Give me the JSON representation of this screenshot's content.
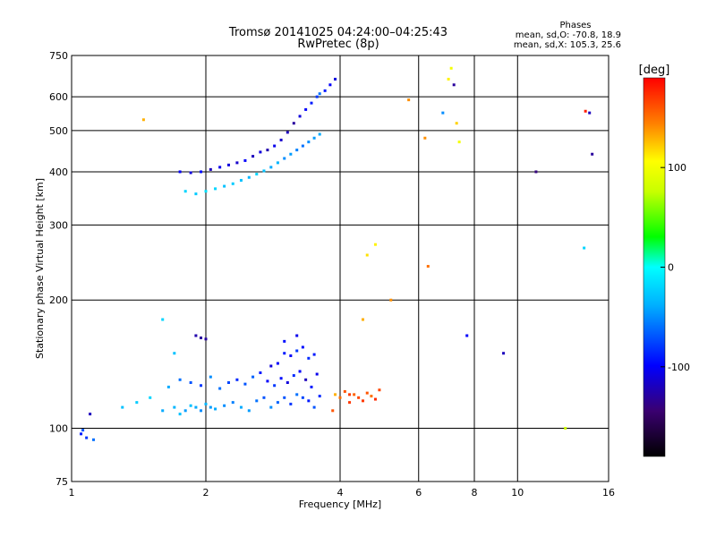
{
  "chart_data": {
    "type": "scatter",
    "title": "Tromsø 20141025 04:24:00–04:25:43",
    "subtitle": "RwPretec (8p)",
    "info_title": "Phases",
    "info_line1": "mean, sd,O: -70.8, 18.9",
    "info_line2": "mean, sd,X: 105.3, 25.6",
    "xlabel": "Frequency [MHz]",
    "ylabel": "Stationary phase Virtual Height [km]",
    "x_scale": "log",
    "y_scale": "log",
    "xlim": [
      1,
      16
    ],
    "ylim": [
      75,
      750
    ],
    "x_ticks": [
      1,
      2,
      4,
      6,
      8,
      10,
      16
    ],
    "x_grid": [
      2,
      4,
      6,
      8,
      10
    ],
    "y_ticks": [
      75,
      100,
      200,
      300,
      400,
      500,
      600,
      750
    ],
    "y_grid": [
      100,
      200,
      300,
      400,
      500,
      600
    ],
    "grid": true,
    "colorbar": {
      "label": "[deg]",
      "ticks": [
        100,
        0,
        -100
      ],
      "range": [
        -190,
        190
      ]
    },
    "series": [
      {
        "region": "low-layer-left",
        "x": [
          1.05,
          1.08,
          1.12,
          1.1,
          1.06
        ],
        "y": [
          97,
          95,
          94,
          108,
          99
        ],
        "phase": [
          -90,
          -80,
          -60,
          -120,
          -70
        ]
      },
      {
        "region": "low-layer-main",
        "x": [
          1.3,
          1.4,
          1.5,
          1.6,
          1.7,
          1.75,
          1.8,
          1.85,
          1.9,
          1.95,
          2.0,
          2.05,
          2.1,
          2.2,
          2.3,
          2.4,
          2.5,
          2.6,
          2.7,
          2.8,
          2.9,
          3.0,
          3.1,
          3.2,
          3.3,
          3.4,
          3.5,
          3.6,
          1.65,
          1.75,
          1.85,
          1.95,
          2.05,
          2.15,
          2.25,
          2.35,
          2.45,
          2.55,
          2.65,
          2.75,
          2.85,
          2.95,
          3.05,
          3.15,
          3.25,
          3.35,
          3.45,
          3.55,
          1.9,
          1.95,
          2.0,
          1.6,
          1.7
        ],
        "y": [
          112,
          115,
          118,
          110,
          112,
          108,
          110,
          113,
          112,
          110,
          114,
          112,
          111,
          113,
          115,
          112,
          110,
          116,
          118,
          112,
          115,
          118,
          114,
          120,
          118,
          116,
          112,
          119,
          125,
          130,
          128,
          126,
          132,
          124,
          128,
          130,
          127,
          132,
          135,
          129,
          126,
          131,
          128,
          133,
          136,
          130,
          125,
          134,
          165,
          163,
          162,
          180,
          150
        ],
        "phase": [
          -30,
          -25,
          -20,
          -40,
          -35,
          -30,
          -45,
          -30,
          -40,
          -50,
          -35,
          -45,
          -40,
          -50,
          -55,
          -40,
          -45,
          -60,
          -70,
          -50,
          -65,
          -70,
          -80,
          -60,
          -75,
          -90,
          -70,
          -85,
          -40,
          -60,
          -70,
          -80,
          -50,
          -60,
          -75,
          -85,
          -70,
          -65,
          -90,
          -100,
          -80,
          -95,
          -110,
          -85,
          -100,
          -120,
          -90,
          -105,
          -125,
          -130,
          -128,
          -20,
          -30
        ]
      },
      {
        "region": "low-layer-upper",
        "x": [
          3.0,
          3.1,
          3.2,
          3.3,
          3.4,
          3.5,
          2.8,
          2.9,
          3.0,
          3.2
        ],
        "y": [
          150,
          148,
          152,
          155,
          146,
          149,
          140,
          142,
          160,
          165
        ],
        "phase": [
          -90,
          -100,
          -80,
          -95,
          -85,
          -90,
          -110,
          -100,
          -95,
          -105
        ]
      },
      {
        "region": "es-mixed",
        "x": [
          3.9,
          4.0,
          4.1,
          4.2,
          4.3,
          4.4,
          4.5,
          4.6,
          4.7,
          4.8,
          4.9
        ],
        "y": [
          120,
          118,
          122,
          115,
          120,
          118,
          116,
          121,
          119,
          117,
          123
        ],
        "phase": [
          130,
          150,
          160,
          170,
          155,
          165,
          170,
          160,
          150,
          175,
          165
        ]
      },
      {
        "region": "f-layer-low-band",
        "x": [
          1.8,
          1.9,
          2.0,
          2.1,
          2.2,
          2.3,
          2.4,
          2.5,
          2.6,
          2.7,
          2.8,
          2.9,
          3.0,
          3.1,
          3.2,
          3.3,
          3.4,
          3.5,
          3.6
        ],
        "y": [
          360,
          355,
          360,
          365,
          370,
          375,
          382,
          388,
          395,
          402,
          410,
          420,
          430,
          440,
          450,
          460,
          470,
          480,
          490
        ],
        "phase": [
          -20,
          -25,
          -15,
          -20,
          -30,
          -25,
          -30,
          -35,
          -20,
          -30,
          -40,
          -35,
          -50,
          -45,
          -55,
          -60,
          -50,
          -45,
          -40
        ]
      },
      {
        "region": "f-layer-high-band",
        "x": [
          1.75,
          1.85,
          1.95,
          2.05,
          2.15,
          2.25,
          2.35,
          2.45,
          2.55,
          2.65,
          2.75,
          2.85,
          2.95,
          3.05,
          3.15,
          3.25,
          3.35,
          3.45,
          3.55,
          3.6,
          3.7,
          3.8,
          3.9
        ],
        "y": [
          400,
          398,
          400,
          405,
          410,
          415,
          420,
          425,
          435,
          445,
          450,
          460,
          475,
          495,
          520,
          540,
          560,
          580,
          600,
          610,
          620,
          640,
          660
        ],
        "phase": [
          -100,
          -110,
          -95,
          -120,
          -105,
          -110,
          -115,
          -100,
          -120,
          -110,
          -125,
          -105,
          -115,
          -120,
          -130,
          -110,
          -100,
          -90,
          -80,
          -60,
          -90,
          -100,
          -110
        ]
      },
      {
        "region": "scattered-x",
        "x": [
          1.45,
          4.8,
          4.6,
          5.7,
          6.3,
          6.8,
          7.1,
          7.0,
          7.2,
          7.3,
          6.2,
          7.4,
          12.8,
          14.2,
          14.5,
          14.7,
          14.1,
          9.3,
          11.0,
          7.7,
          5.2,
          4.5,
          4.2,
          3.85
        ],
        "y": [
          530,
          270,
          255,
          590,
          240,
          550,
          700,
          660,
          640,
          520,
          480,
          470,
          100,
          555,
          550,
          440,
          265,
          150,
          400,
          165,
          200,
          180,
          120,
          110
        ],
        "phase": [
          130,
          110,
          115,
          140,
          150,
          -50,
          100,
          110,
          -130,
          120,
          140,
          100,
          80,
          180,
          -120,
          -130,
          -20,
          -120,
          -140,
          -100,
          140,
          130,
          170,
          160
        ]
      }
    ]
  }
}
